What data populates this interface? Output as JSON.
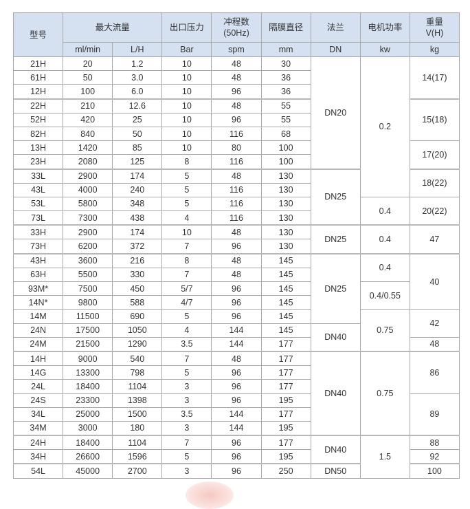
{
  "header": {
    "model": "型号",
    "max_flow": "最大流量",
    "outlet_pressure": "出口压力",
    "stroke_rate": "冲程数\n(50Hz)",
    "diaphragm_diameter": "隔膜直径",
    "flange": "法兰",
    "motor_power": "电机功率",
    "weight": "重量\nV(H)",
    "units": [
      "ml/min",
      "L/H",
      "Bar",
      "spm",
      "mm",
      "DN",
      "kw",
      "kg"
    ]
  },
  "rows": [
    [
      "21H",
      "20",
      "1.2",
      "10",
      "48",
      "30"
    ],
    [
      "61H",
      "50",
      "3.0",
      "10",
      "48",
      "36"
    ],
    [
      "12H",
      "100",
      "6.0",
      "10",
      "96",
      "36"
    ],
    [
      "22H",
      "210",
      "12.6",
      "10",
      "48",
      "55"
    ],
    [
      "52H",
      "420",
      "25",
      "10",
      "96",
      "55"
    ],
    [
      "82H",
      "840",
      "50",
      "10",
      "116",
      "68"
    ],
    [
      "13H",
      "1420",
      "85",
      "10",
      "80",
      "100"
    ],
    [
      "23H",
      "2080",
      "125",
      "8",
      "116",
      "100"
    ],
    [
      "33L",
      "2900",
      "174",
      "5",
      "48",
      "130"
    ],
    [
      "43L",
      "4000",
      "240",
      "5",
      "116",
      "130"
    ],
    [
      "53L",
      "5800",
      "348",
      "5",
      "116",
      "130"
    ],
    [
      "73L",
      "7300",
      "438",
      "4",
      "116",
      "130"
    ],
    [
      "33H",
      "2900",
      "174",
      "10",
      "48",
      "130"
    ],
    [
      "73H",
      "6200",
      "372",
      "7",
      "96",
      "130"
    ],
    [
      "43H",
      "3600",
      "216",
      "8",
      "48",
      "145"
    ],
    [
      "63H",
      "5500",
      "330",
      "7",
      "48",
      "145"
    ],
    [
      "93M*",
      "7500",
      "450",
      "5/7",
      "96",
      "145"
    ],
    [
      "14N*",
      "9800",
      "588",
      "4/7",
      "96",
      "145"
    ],
    [
      "14M",
      "11500",
      "690",
      "5",
      "96",
      "145"
    ],
    [
      "24N",
      "17500",
      "1050",
      "4",
      "144",
      "145"
    ],
    [
      "24M",
      "21500",
      "1290",
      "3.5",
      "144",
      "177"
    ],
    [
      "14H",
      "9000",
      "540",
      "7",
      "48",
      "177"
    ],
    [
      "14G",
      "13300",
      "798",
      "5",
      "96",
      "177"
    ],
    [
      "24L",
      "18400",
      "1104",
      "3",
      "96",
      "177"
    ],
    [
      "24S",
      "23300",
      "1398",
      "3",
      "96",
      "195"
    ],
    [
      "34L",
      "25000",
      "1500",
      "3.5",
      "144",
      "177"
    ],
    [
      "34M",
      "3000",
      "180",
      "3",
      "144",
      "195"
    ],
    [
      "24H",
      "18400",
      "1104",
      "7",
      "96",
      "177"
    ],
    [
      "34H",
      "26600",
      "1596",
      "5",
      "96",
      "195"
    ],
    [
      "54L",
      "45000",
      "2700",
      "3",
      "96",
      "250"
    ]
  ],
  "flange_groups": [
    {
      "value": "DN20",
      "rows": 8
    },
    {
      "value": "DN25",
      "rows": 4
    },
    {
      "value": "DN25",
      "rows": 2
    },
    {
      "value": "DN25",
      "rows": 5
    },
    {
      "value": "DN40",
      "rows": 2
    },
    {
      "value": "DN40",
      "rows": 6
    },
    {
      "value": "DN40",
      "rows": 2
    },
    {
      "value": "DN50",
      "rows": 1
    }
  ],
  "power_groups": [
    {
      "value": "0.2",
      "rows": 10
    },
    {
      "value": "0.4",
      "rows": 2
    },
    {
      "value": "0.4",
      "rows": 2
    },
    {
      "value": "0.4",
      "rows": 2
    },
    {
      "value": "0.4/0.55",
      "rows": 2
    },
    {
      "value": "0.75",
      "rows": 3
    },
    {
      "value": "0.75",
      "rows": 6
    },
    {
      "value": "1.5",
      "rows": 3
    }
  ],
  "weight_groups": [
    {
      "value": "14(17)",
      "rows": 3
    },
    {
      "value": "15(18)",
      "rows": 3
    },
    {
      "value": "17(20)",
      "rows": 2
    },
    {
      "value": "18(22)",
      "rows": 2
    },
    {
      "value": "20(22)",
      "rows": 2
    },
    {
      "value": "47",
      "rows": 2
    },
    {
      "value": "40",
      "rows": 4
    },
    {
      "value": "42",
      "rows": 2
    },
    {
      "value": "48",
      "rows": 1
    },
    {
      "value": "86",
      "rows": 3
    },
    {
      "value": "89",
      "rows": 3
    },
    {
      "value": "88",
      "rows": 1
    },
    {
      "value": "92",
      "rows": 1
    },
    {
      "value": "100",
      "rows": 1
    }
  ],
  "group_start_rows": [
    3,
    8,
    12,
    14,
    21,
    27,
    29
  ],
  "colors": {
    "header_bg": "#d5e0f1",
    "border": "#a8a8a8"
  }
}
